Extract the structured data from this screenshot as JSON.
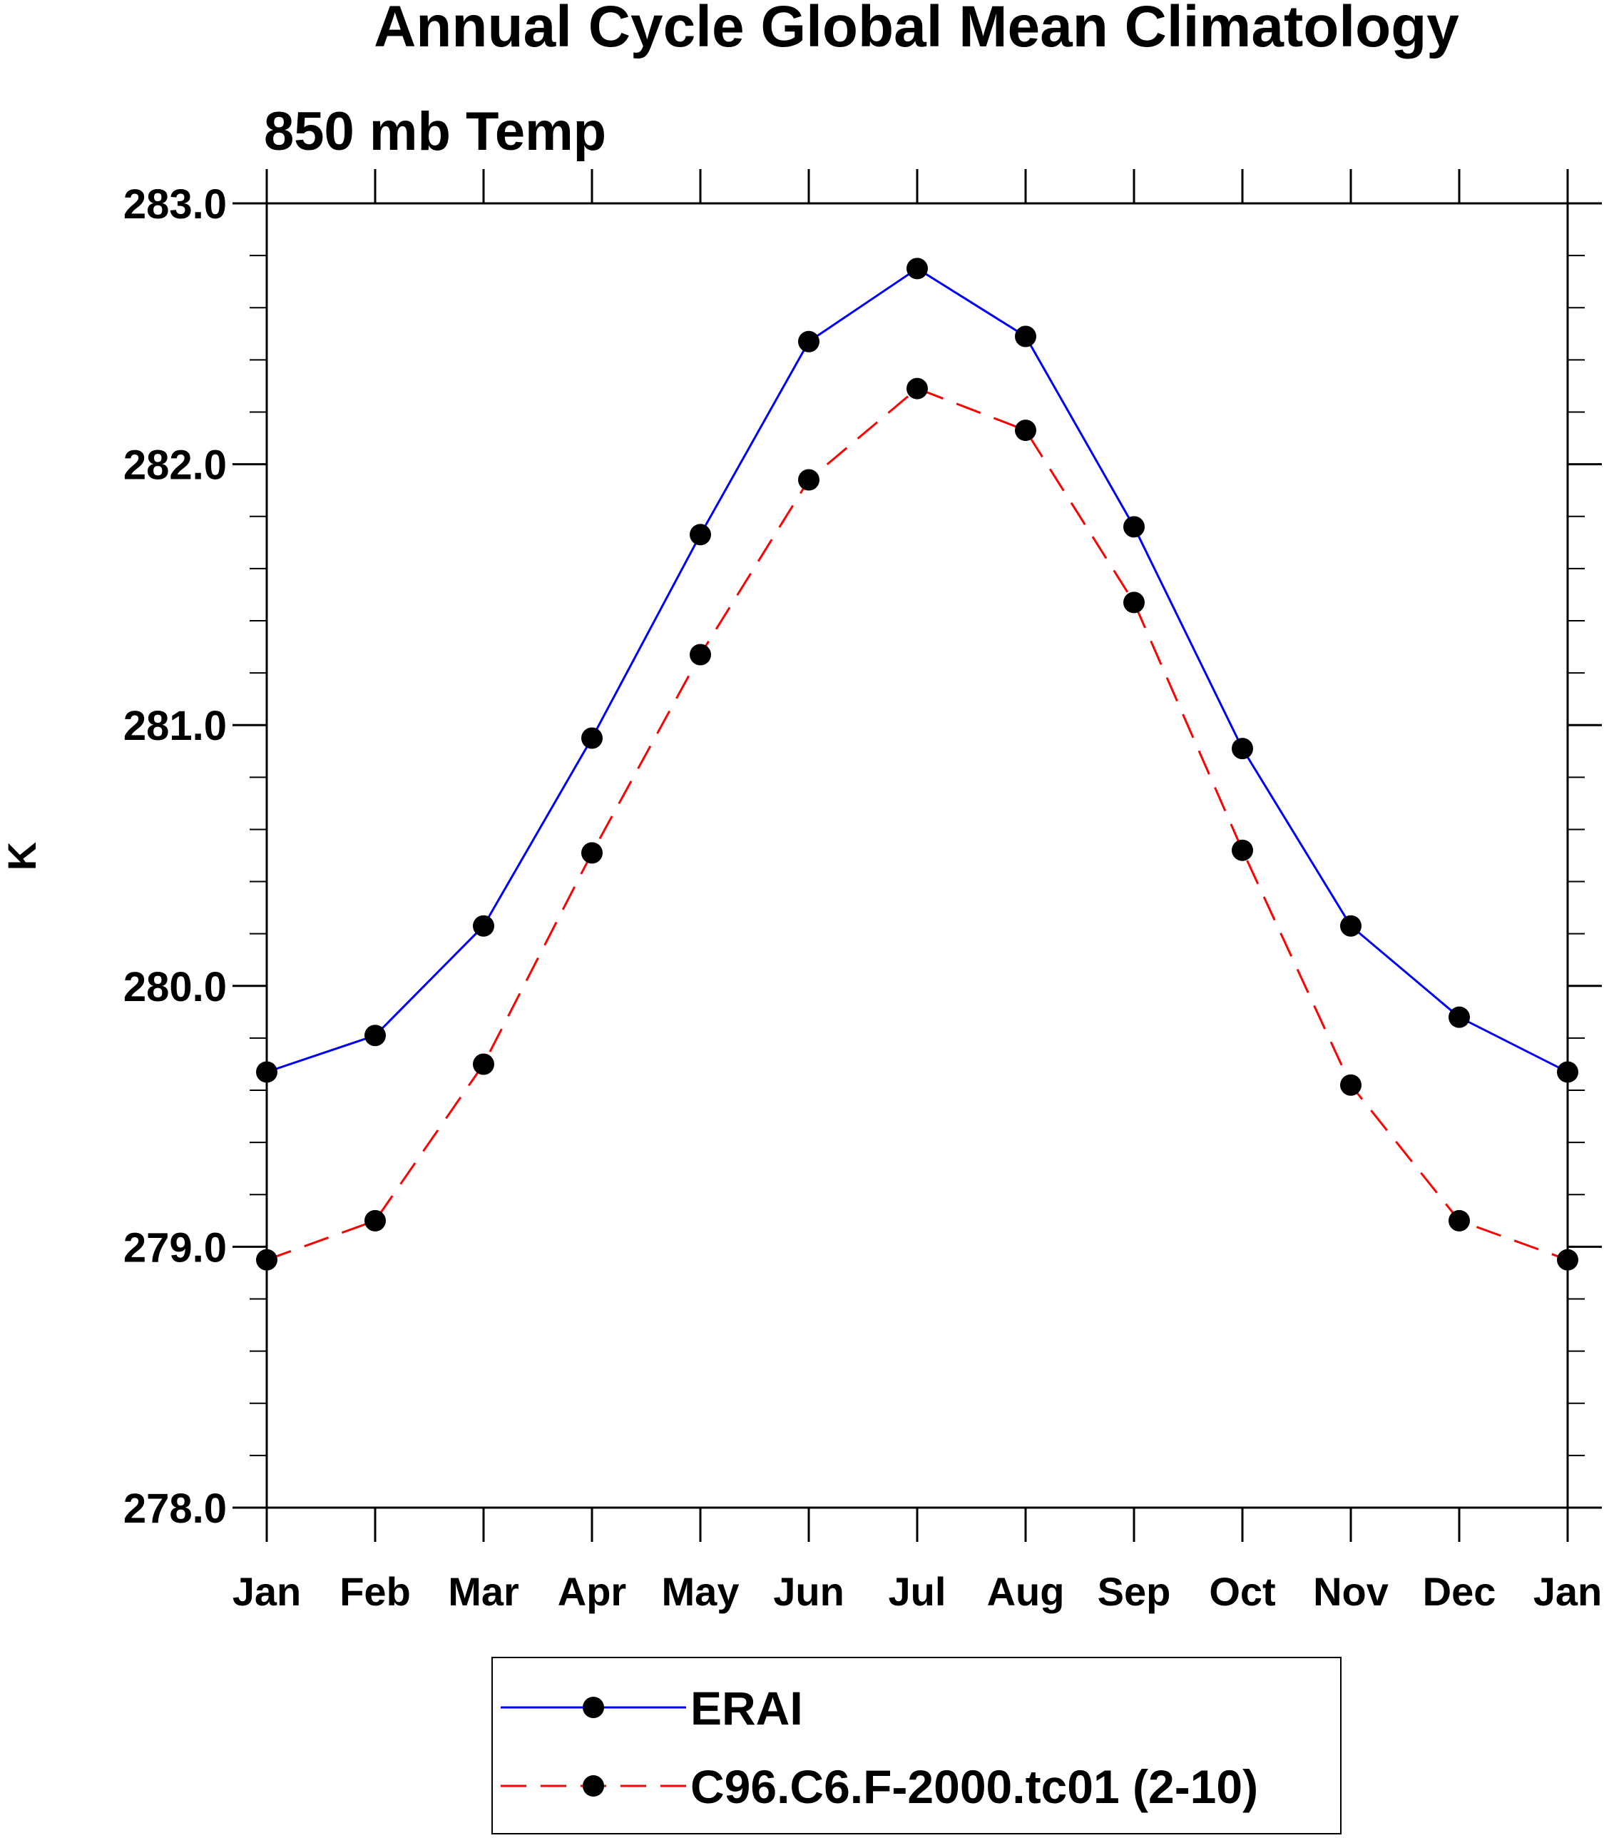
{
  "chart_data": {
    "type": "line",
    "title": "Annual Cycle Global Mean Climatology",
    "subtitle": "850 mb Temp",
    "xlabel": "",
    "ylabel": "K",
    "categories": [
      "Jan",
      "Feb",
      "Mar",
      "Apr",
      "May",
      "Jun",
      "Jul",
      "Aug",
      "Sep",
      "Oct",
      "Nov",
      "Dec",
      "Jan"
    ],
    "ylim": [
      278.0,
      283.0
    ],
    "yticks": [
      "278.0",
      "279.0",
      "280.0",
      "281.0",
      "282.0",
      "283.0"
    ],
    "yminor_step": 0.2,
    "grid": false,
    "legend_position": "bottom",
    "series": [
      {
        "name": "ERAI",
        "color": "#0000ff",
        "dash": "solid",
        "marker": "filled-circle",
        "values": [
          279.67,
          279.81,
          280.23,
          280.95,
          281.73,
          282.47,
          282.75,
          282.49,
          281.76,
          280.91,
          280.23,
          279.88,
          279.67
        ]
      },
      {
        "name": "C96.C6.F-2000.tc01 (2-10)",
        "color": "#ff0000",
        "dash": "dashed",
        "marker": "filled-circle",
        "values": [
          278.95,
          279.1,
          279.7,
          280.51,
          281.27,
          281.94,
          282.29,
          282.13,
          281.47,
          280.52,
          279.62,
          279.1,
          278.95
        ]
      }
    ]
  }
}
